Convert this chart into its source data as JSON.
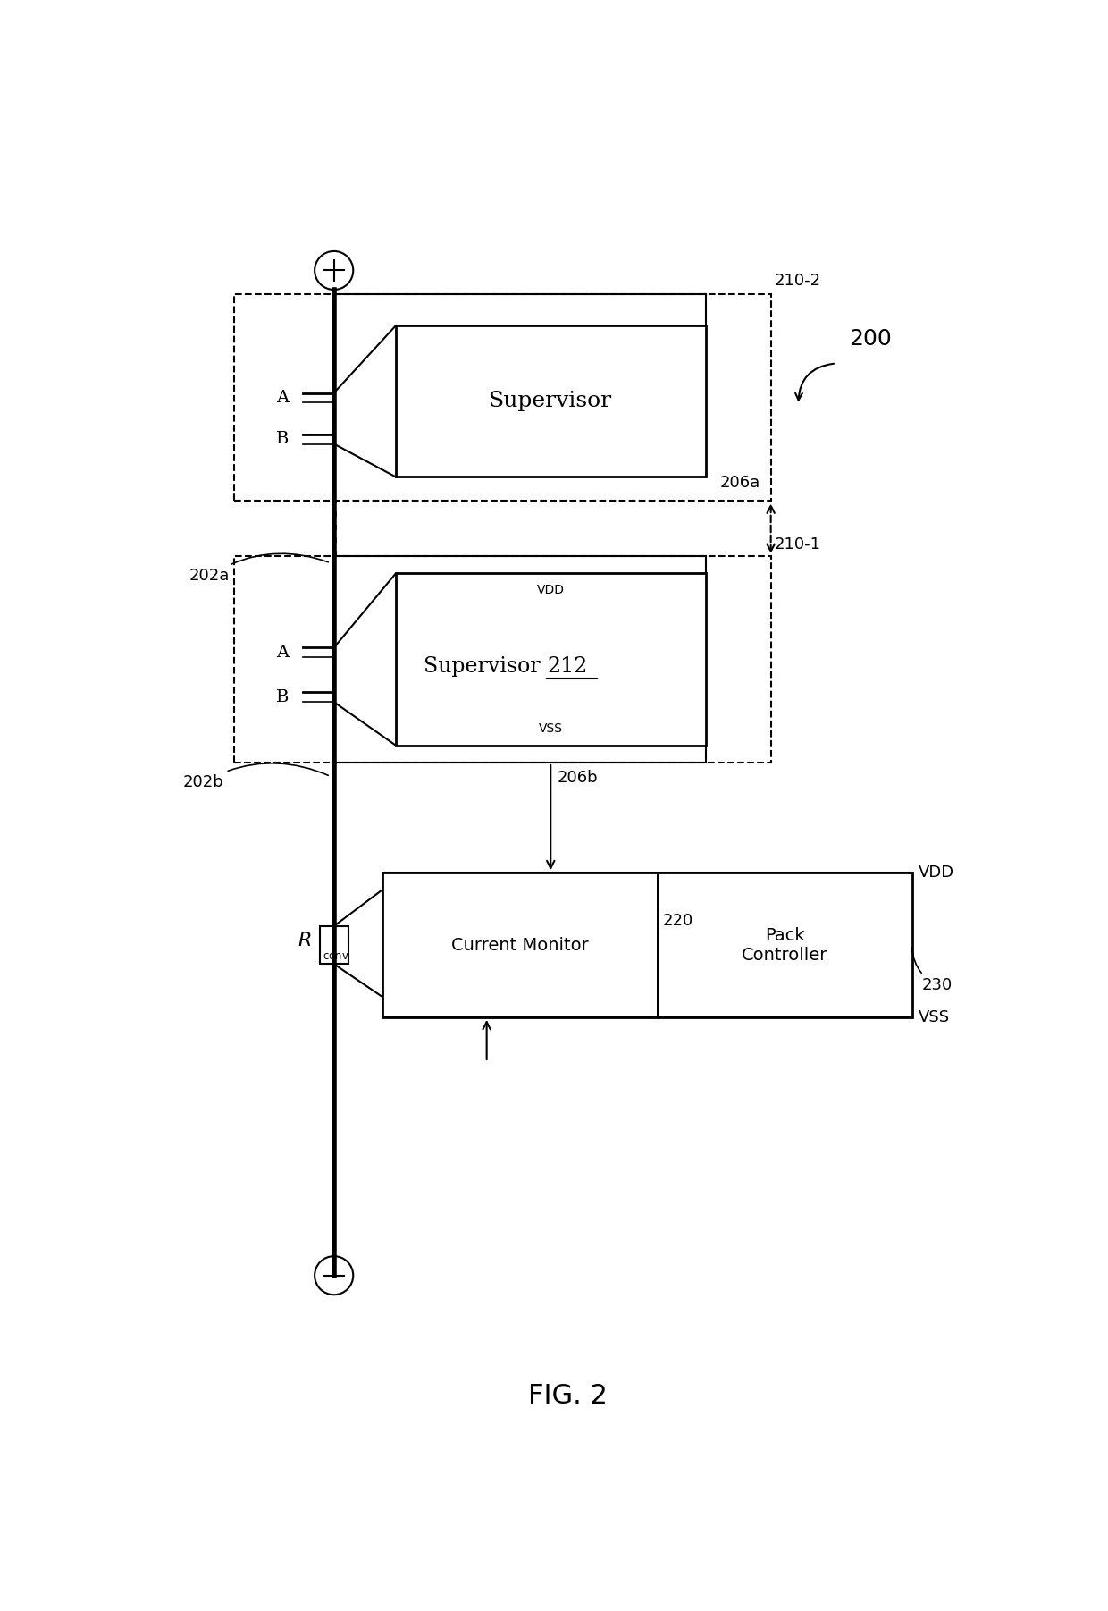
{
  "bg_color": "#ffffff",
  "fig_width": 12.4,
  "fig_height": 18.02,
  "title": "FIG. 2",
  "label_200": "200",
  "label_210_2": "210-2",
  "label_210_1": "210-1",
  "label_202a": "202a",
  "label_202b": "202b",
  "label_206a": "206a",
  "label_206b": "206b",
  "label_220": "220",
  "label_230": "230",
  "label_vdd_top": "VDD",
  "label_vss_bot": "VSS",
  "label_supervisor_top": "Supervisor",
  "label_supervisor_bot_vdd": "VDD",
  "label_supervisor_bot_vss": "VSS",
  "label_current_monitor": "Current Monitor",
  "label_pack_controller": "Pack\nController",
  "label_A": "A",
  "label_B": "B"
}
